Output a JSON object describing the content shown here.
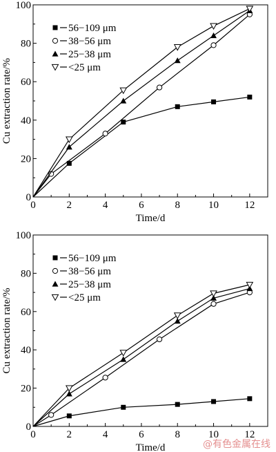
{
  "watermark": "@有色金属在线",
  "chart_data": [
    {
      "type": "line",
      "title": "",
      "xlabel": "Time/d",
      "ylabel": "Cu extraction rate/%",
      "xlim": [
        0,
        13
      ],
      "ylim": [
        0,
        100
      ],
      "xticks": [
        0,
        2,
        4,
        6,
        8,
        10,
        12
      ],
      "yticks": [
        0,
        20,
        40,
        60,
        80,
        100
      ],
      "legend_position": "top-left",
      "series": [
        {
          "name": "56−109 μm",
          "marker": "square-filled",
          "x": [
            0,
            2,
            5,
            8,
            10,
            12
          ],
          "y": [
            0,
            17.5,
            39,
            47,
            49.5,
            52
          ]
        },
        {
          "name": "38−56 μm",
          "marker": "circle-open",
          "x": [
            0,
            1,
            4,
            7,
            10,
            12
          ],
          "y": [
            0,
            12,
            33,
            57,
            79,
            95
          ]
        },
        {
          "name": "25−38 μm",
          "marker": "triangle-up-filled",
          "x": [
            0,
            2,
            5,
            8,
            10,
            12
          ],
          "y": [
            0,
            26,
            50,
            71,
            84,
            97
          ]
        },
        {
          "name": "<25 μm",
          "marker": "triangle-down-open",
          "x": [
            0,
            2,
            5,
            8,
            10,
            12
          ],
          "y": [
            0,
            30,
            55.5,
            78,
            89,
            98
          ]
        }
      ]
    },
    {
      "type": "line",
      "title": "",
      "xlabel": "Time/d",
      "ylabel": "Cu extraction rate/%",
      "xlim": [
        0,
        13
      ],
      "ylim": [
        0,
        100
      ],
      "xticks": [
        0,
        2,
        4,
        6,
        8,
        10,
        12
      ],
      "yticks": [
        0,
        20,
        40,
        60,
        80,
        100
      ],
      "legend_position": "top-left",
      "series": [
        {
          "name": "56−109 μm",
          "marker": "square-filled",
          "x": [
            0,
            2,
            5,
            8,
            10,
            12
          ],
          "y": [
            0,
            5.5,
            10,
            11.5,
            13,
            14.5
          ]
        },
        {
          "name": "38−56 μm",
          "marker": "circle-open",
          "x": [
            0,
            1,
            4,
            7,
            10,
            12
          ],
          "y": [
            0,
            6,
            25.5,
            45.5,
            64,
            70
          ]
        },
        {
          "name": "25−38 μm",
          "marker": "triangle-up-filled",
          "x": [
            0,
            2,
            5,
            8,
            10,
            12
          ],
          "y": [
            0,
            17,
            35,
            55,
            67,
            72
          ]
        },
        {
          "name": "<25 μm",
          "marker": "triangle-down-open",
          "x": [
            0,
            2,
            5,
            8,
            10,
            12
          ],
          "y": [
            0,
            20,
            38.5,
            58,
            69.5,
            74
          ]
        }
      ]
    }
  ]
}
